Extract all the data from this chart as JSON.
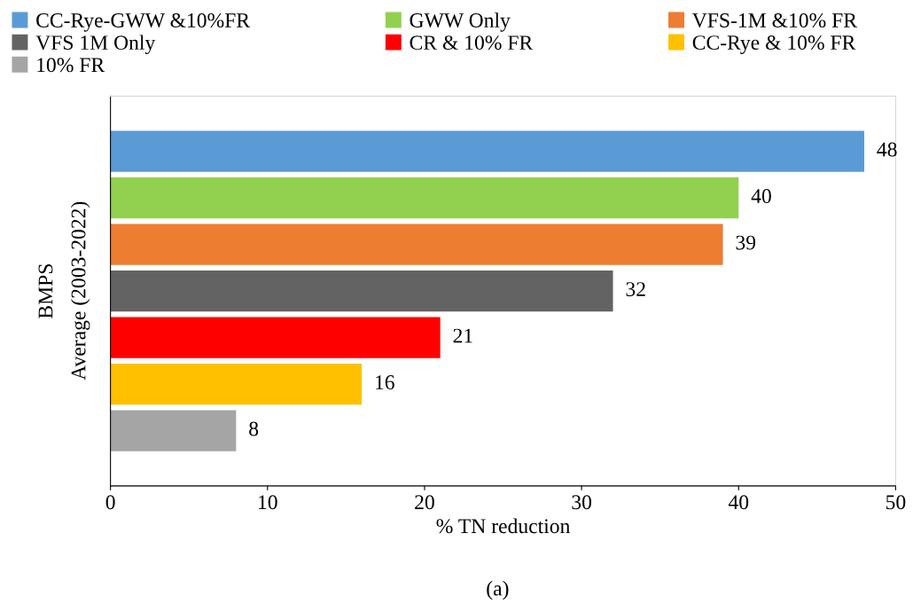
{
  "chart_data": {
    "type": "bar",
    "orientation": "horizontal",
    "categories": [
      null,
      null,
      null,
      null,
      null,
      null,
      null
    ],
    "series": [
      {
        "name": "CC-Rye-GWW &10%FR",
        "color": "#5b9bd5",
        "values": [
          48,
          null,
          null,
          null,
          null,
          null,
          null
        ]
      },
      {
        "name": "GWW Only",
        "color": "#92d050",
        "values": [
          null,
          40,
          null,
          null,
          null,
          null,
          null
        ]
      },
      {
        "name": "VFS-1M &10% FR",
        "color": "#ed7d31",
        "values": [
          null,
          null,
          39,
          null,
          null,
          null,
          null
        ]
      },
      {
        "name": "VFS 1M Only",
        "color": "#636363",
        "values": [
          null,
          null,
          null,
          32,
          null,
          null,
          null
        ]
      },
      {
        "name": "CR & 10% FR",
        "color": "#ff0000",
        "values": [
          null,
          null,
          null,
          null,
          21,
          null,
          null
        ]
      },
      {
        "name": "CC-Rye & 10% FR",
        "color": "#ffc000",
        "values": [
          null,
          null,
          null,
          null,
          null,
          16,
          null
        ]
      },
      {
        "name": "10% FR",
        "color": "#a5a5a5",
        "values": [
          null,
          null,
          null,
          null,
          null,
          null,
          8
        ]
      }
    ],
    "xlabel": "% TN reduction",
    "ylabel": "BMPS",
    "xlim": [
      0,
      50
    ],
    "xticks": [
      0,
      10,
      20,
      30,
      40,
      50
    ],
    "data_labels": true,
    "legend": "top",
    "grid": false,
    "annotations": [
      "Average (2003-2022)",
      "(a)"
    ]
  }
}
